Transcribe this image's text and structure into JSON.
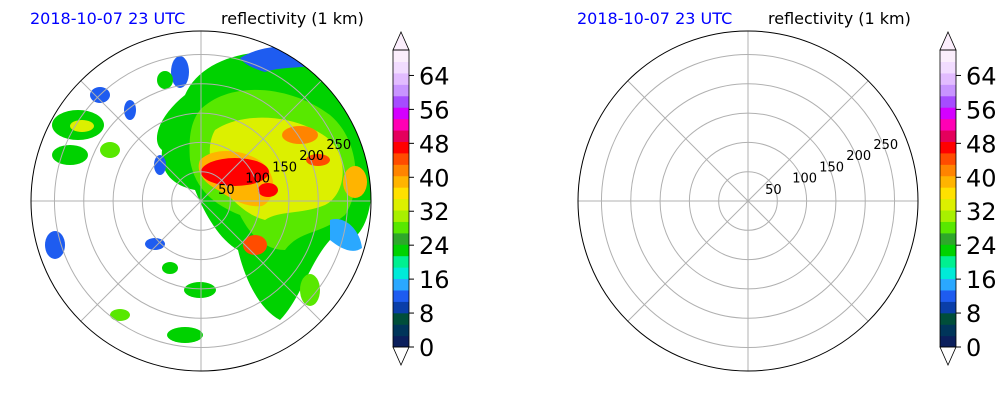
{
  "chart_data": [
    {
      "type": "polar",
      "time_label": "2018-10-07 23 UTC",
      "product_label": "reflectivity (1 km)",
      "range_ring_labels": [
        "50",
        "100",
        "150",
        "200",
        "250"
      ],
      "range_rings": [
        50,
        100,
        150,
        200,
        250
      ],
      "r_max": 290,
      "radial_lines_deg": [
        0,
        45,
        90,
        135,
        180,
        225,
        270,
        315
      ],
      "grid": true,
      "has_echoes": true,
      "colorbar": {
        "ticks": [
          "0",
          "8",
          "16",
          "24",
          "32",
          "40",
          "48",
          "56",
          "64"
        ],
        "tick_values": [
          0,
          8,
          16,
          24,
          32,
          40,
          48,
          56,
          64
        ],
        "vmin": 0,
        "vmax": 70,
        "extend": "both"
      }
    },
    {
      "type": "polar",
      "time_label": "2018-10-07 23 UTC",
      "product_label": "reflectivity (1 km)",
      "range_ring_labels": [
        "50",
        "100",
        "150",
        "200",
        "250"
      ],
      "range_rings": [
        50,
        100,
        150,
        200,
        250
      ],
      "r_max": 290,
      "radial_lines_deg": [
        0,
        45,
        90,
        135,
        180,
        225,
        270,
        315
      ],
      "grid": true,
      "has_echoes": false,
      "colorbar": {
        "ticks": [
          "0",
          "8",
          "16",
          "24",
          "32",
          "40",
          "48",
          "56",
          "64"
        ],
        "tick_values": [
          0,
          8,
          16,
          24,
          32,
          40,
          48,
          56,
          64
        ],
        "vmin": 0,
        "vmax": 70,
        "extend": "both"
      }
    }
  ],
  "colormap": [
    "#0b1f5c",
    "#00355a",
    "#004e3a",
    "#0a3ea8",
    "#1e5cf0",
    "#2aa8ff",
    "#00ead8",
    "#00f090",
    "#00d200",
    "#2ea82a",
    "#58e800",
    "#a8f000",
    "#dcf000",
    "#ffe100",
    "#ffb400",
    "#ff8400",
    "#ff4c00",
    "#ff0000",
    "#e4005c",
    "#ff00b4",
    "#d400ff",
    "#a64cff",
    "#c894ff",
    "#e2bcff",
    "#f2dcff",
    "#fbeefc"
  ],
  "ring_color": "#b0b0b0",
  "frame_color": "#000000"
}
